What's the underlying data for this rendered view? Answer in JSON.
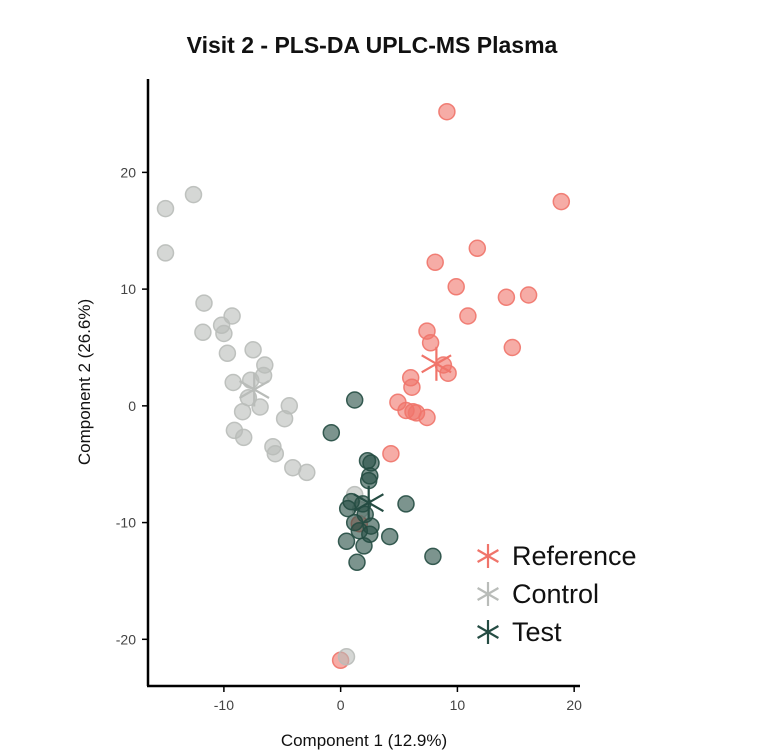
{
  "colors": {
    "Reference": "#f0746a",
    "Control": "#b9bcb9",
    "Test": "#254c43"
  },
  "chart_data": {
    "type": "scatter",
    "title": "Visit 2 - PLS-DA UPLC-MS Plasma",
    "xlabel": "Component 1 (12.9%)",
    "ylabel": "Component 2 (26.6%)",
    "xlim": [
      -16.5,
      20.5
    ],
    "ylim": [
      -24,
      28
    ],
    "xticks": [
      -10,
      0,
      10,
      20
    ],
    "yticks": [
      -20,
      -10,
      0,
      10,
      20
    ],
    "xtick_labels": [
      "-10",
      "0",
      "10",
      "20"
    ],
    "ytick_labels": [
      "-20",
      "-10",
      "0",
      "10",
      "20"
    ],
    "grid": false,
    "legend_position": "bottom-right",
    "series": [
      {
        "name": "Reference",
        "centroid": [
          8.2,
          3.6
        ],
        "points": [
          [
            9.1,
            25.2
          ],
          [
            18.9,
            17.5
          ],
          [
            11.7,
            13.5
          ],
          [
            8.1,
            12.3
          ],
          [
            9.9,
            10.2
          ],
          [
            14.2,
            9.3
          ],
          [
            16.1,
            9.5
          ],
          [
            10.9,
            7.7
          ],
          [
            7.4,
            6.4
          ],
          [
            7.7,
            5.4
          ],
          [
            14.7,
            5.0
          ],
          [
            8.8,
            3.5
          ],
          [
            9.2,
            2.8
          ],
          [
            6.0,
            2.4
          ],
          [
            6.1,
            1.6
          ],
          [
            4.9,
            0.3
          ],
          [
            5.6,
            -0.4
          ],
          [
            6.2,
            -0.5
          ],
          [
            6.5,
            -0.6
          ],
          [
            7.4,
            -1.0
          ],
          [
            4.3,
            -4.1
          ],
          [
            1.6,
            -10.1
          ],
          [
            0.0,
            -21.8
          ]
        ]
      },
      {
        "name": "Control",
        "centroid": [
          -7.4,
          1.4
        ],
        "points": [
          [
            -12.6,
            18.1
          ],
          [
            -15.0,
            16.9
          ],
          [
            -15.0,
            13.1
          ],
          [
            -11.7,
            8.8
          ],
          [
            -9.3,
            7.7
          ],
          [
            -10.2,
            6.9
          ],
          [
            -11.8,
            6.3
          ],
          [
            -10.0,
            6.2
          ],
          [
            -7.5,
            4.8
          ],
          [
            -9.7,
            4.5
          ],
          [
            -6.5,
            3.5
          ],
          [
            -6.6,
            2.6
          ],
          [
            -7.7,
            2.2
          ],
          [
            -9.2,
            2.0
          ],
          [
            -7.9,
            0.7
          ],
          [
            -4.4,
            0.0
          ],
          [
            -6.9,
            -0.1
          ],
          [
            -8.4,
            -0.5
          ],
          [
            -4.8,
            -1.1
          ],
          [
            -9.1,
            -2.1
          ],
          [
            -8.3,
            -2.7
          ],
          [
            -5.8,
            -3.5
          ],
          [
            -5.6,
            -4.1
          ],
          [
            -4.1,
            -5.3
          ],
          [
            -2.9,
            -5.7
          ],
          [
            1.2,
            -7.6
          ],
          [
            1.7,
            -8.9
          ],
          [
            0.5,
            -21.5
          ]
        ]
      },
      {
        "name": "Test",
        "centroid": [
          2.4,
          -8.3
        ],
        "points": [
          [
            1.2,
            0.5
          ],
          [
            -0.8,
            -2.3
          ],
          [
            2.3,
            -4.7
          ],
          [
            2.6,
            -4.9
          ],
          [
            2.5,
            -6.0
          ],
          [
            2.4,
            -6.4
          ],
          [
            0.9,
            -8.2
          ],
          [
            1.9,
            -8.4
          ],
          [
            5.6,
            -8.4
          ],
          [
            0.6,
            -8.8
          ],
          [
            2.1,
            -9.3
          ],
          [
            1.2,
            -10.0
          ],
          [
            2.6,
            -10.3
          ],
          [
            2.5,
            -11.0
          ],
          [
            1.6,
            -10.7
          ],
          [
            4.2,
            -11.2
          ],
          [
            0.5,
            -11.6
          ],
          [
            2.0,
            -12.0
          ],
          [
            7.9,
            -12.9
          ],
          [
            1.4,
            -13.4
          ]
        ]
      }
    ]
  },
  "legend": [
    {
      "label": "Reference",
      "series": "Reference"
    },
    {
      "label": "Control",
      "series": "Control"
    },
    {
      "label": "Test",
      "series": "Test"
    }
  ]
}
